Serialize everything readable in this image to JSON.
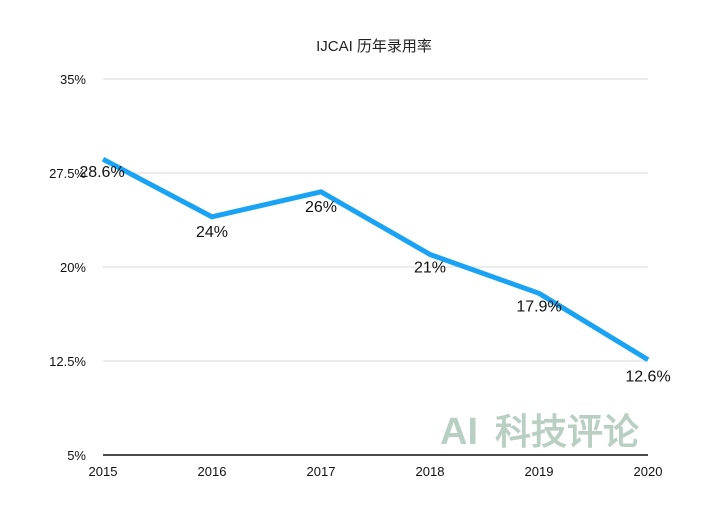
{
  "chart_data": {
    "type": "line",
    "title": "IJCAI 历年录用率",
    "xlabel": "",
    "ylabel": "",
    "categories": [
      "2015",
      "2016",
      "2017",
      "2018",
      "2019",
      "2020"
    ],
    "series": [
      {
        "values": [
          28.6,
          24,
          26,
          21,
          17.9,
          12.6
        ],
        "labels": [
          "28.6%",
          "24%",
          "26%",
          "21%",
          "17.9%",
          "12.6%"
        ]
      }
    ],
    "ylim": [
      5,
      35
    ],
    "yticks": [
      5,
      12.5,
      20,
      27.5,
      35
    ],
    "ytick_labels": [
      "5%",
      "12.5%",
      "20%",
      "27.5%",
      "35%"
    ],
    "grid": true,
    "legend": "none"
  },
  "colors": {
    "series": "#1aa3f5",
    "grid": "#d9d9d9",
    "axis": "#111111",
    "watermark": "#b9cfc4"
  },
  "watermark": {
    "ai_text": "AI",
    "cn_text": "科技评论"
  }
}
